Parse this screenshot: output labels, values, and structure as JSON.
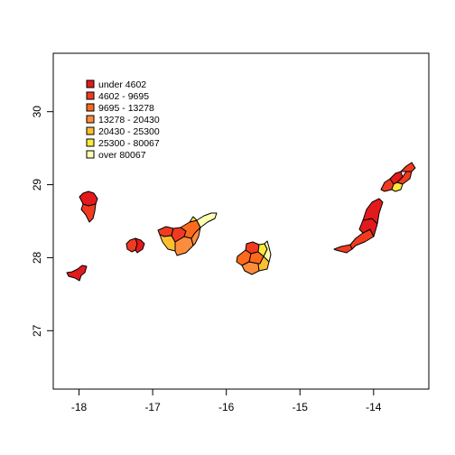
{
  "map": {
    "x_axis": {
      "ticks": [
        -18,
        -17,
        -16,
        -15,
        -14
      ],
      "range": [
        -18.35,
        -13.25
      ]
    },
    "y_axis": {
      "ticks": [
        27,
        28,
        29,
        30
      ],
      "range": [
        26.2,
        30.8
      ]
    },
    "colors": {
      "under_4602": "#e31a1c",
      "4602_9695": "#f03b20",
      "9695_13278": "#fd6a1c",
      "13278_20430": "#fd8d3c",
      "20430_25300": "#fdbf2f",
      "25300_80067": "#fee83a",
      "over_80067": "#ffffb2"
    },
    "legend": {
      "placement": "top-left",
      "entries": [
        {
          "label": "under 4602",
          "color": "#e31a1c"
        },
        {
          "label": "4602 - 9695",
          "color": "#f03b20"
        },
        {
          "label": "9695 - 13278",
          "color": "#fd6a1c"
        },
        {
          "label": "13278 - 20430",
          "color": "#fd8d3c"
        },
        {
          "label": "20430 - 25300",
          "color": "#fdbf2f"
        },
        {
          "label": "25300 - 80067",
          "color": "#fee83a"
        },
        {
          "label": "over 80067",
          "color": "#ffffb2"
        }
      ]
    }
  }
}
